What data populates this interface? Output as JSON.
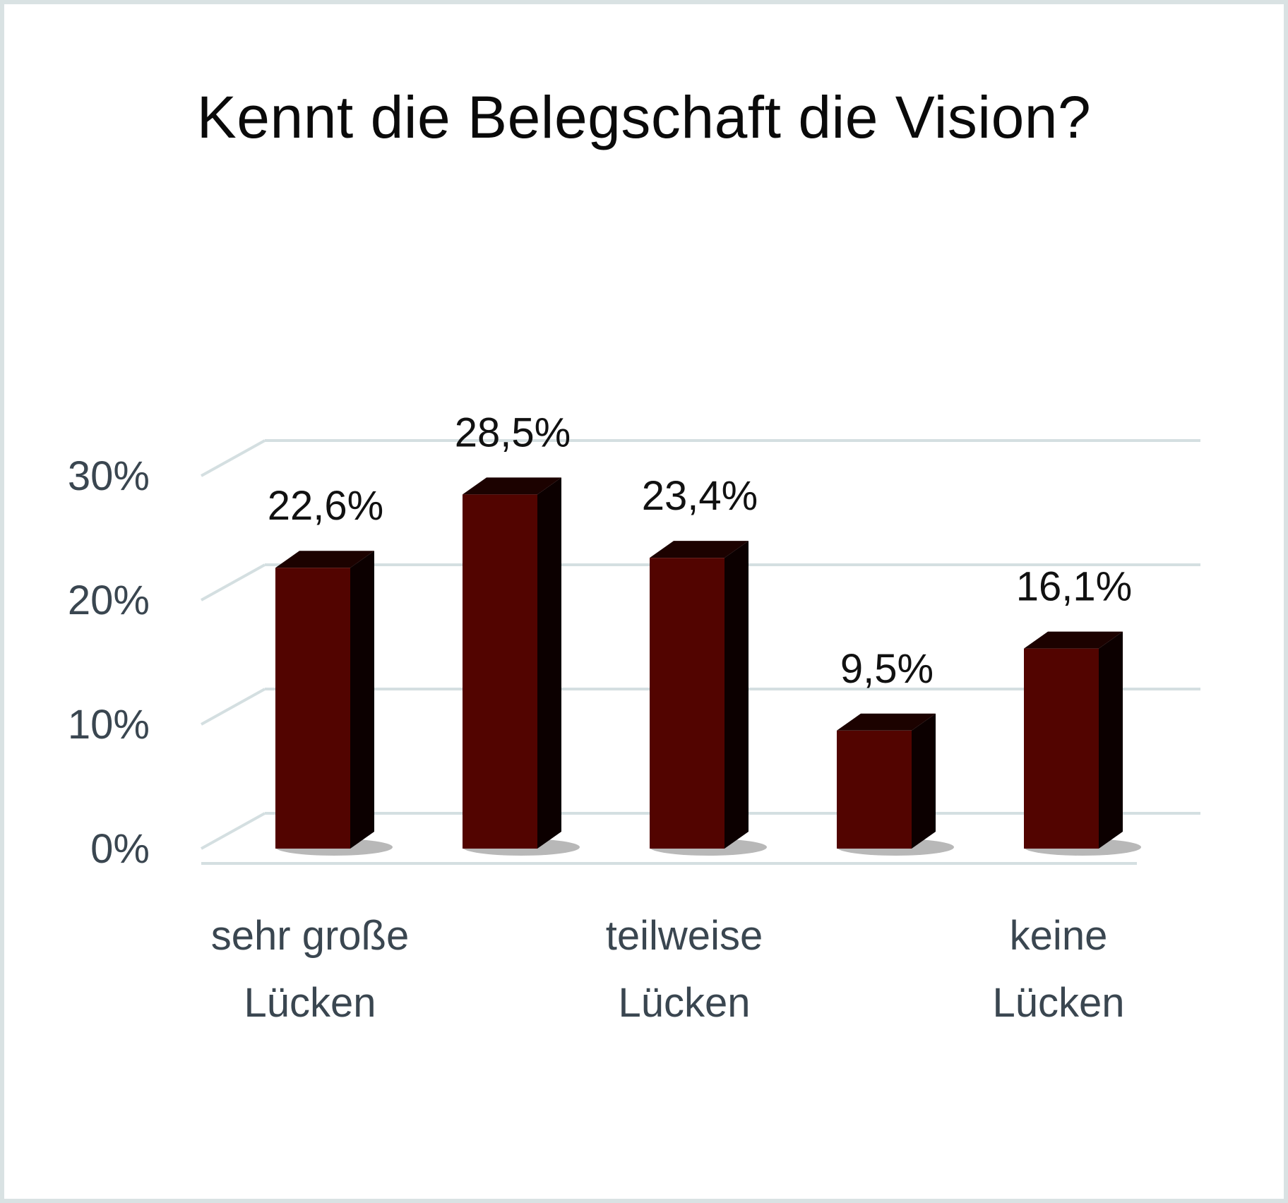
{
  "chart_data": {
    "type": "bar",
    "title": "Kennt die Belegschaft die Vision?",
    "categories": [
      [
        "sehr große",
        "Lücken"
      ],
      [
        "",
        ""
      ],
      [
        "teilweise",
        "Lücken"
      ],
      [
        "",
        ""
      ],
      [
        "keine",
        "Lücken"
      ]
    ],
    "values": [
      22.6,
      28.5,
      23.4,
      9.5,
      16.1
    ],
    "data_labels": [
      "22,6%",
      "28,5%",
      "23,4%",
      "9,5%",
      "16,1%"
    ],
    "y_ticks": [
      "0%",
      "10%",
      "20%",
      "30%"
    ],
    "y_tick_values": [
      0,
      10,
      20,
      30
    ],
    "ylim": [
      0,
      30
    ],
    "grid": true,
    "style": "3d-column",
    "colors": {
      "bar_front": "#520400",
      "bar_side": "#0c0000",
      "bar_top": "#1c0200",
      "grid": "#d4dfe1",
      "frame": "#d9e2e3"
    }
  }
}
